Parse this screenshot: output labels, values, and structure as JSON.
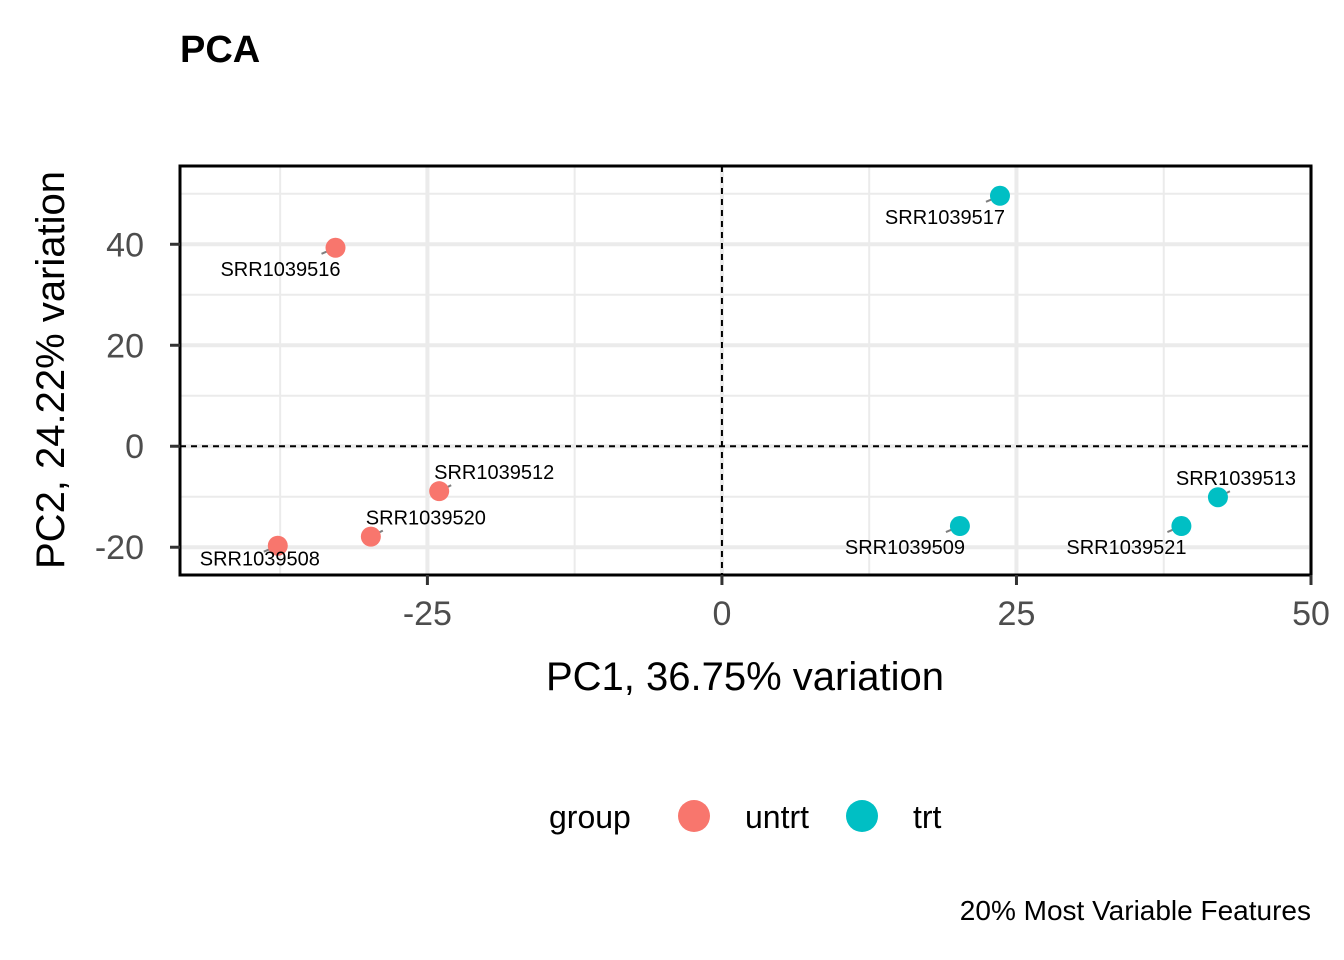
{
  "chart_data": {
    "type": "scatter",
    "title": "PCA",
    "xlabel": "PC1, 36.75% variation",
    "ylabel": "PC2, 24.22% variation",
    "caption": "20% Most Variable Features",
    "xlim": [
      -46,
      50
    ],
    "ylim": [
      -25.5,
      55.5
    ],
    "xticks": [
      -25,
      0,
      25,
      50
    ],
    "xtick_labels": [
      "-25",
      "0",
      "25",
      "50"
    ],
    "yticks": [
      -20,
      0,
      20,
      40
    ],
    "ytick_labels": [
      "-20",
      "0",
      "20",
      "40"
    ],
    "grid": true,
    "reference_lines": {
      "x": 0,
      "y": 0
    },
    "legend": {
      "title": "group",
      "position": "bottom",
      "entries": [
        {
          "name": "untrt",
          "color": "#F8766D"
        },
        {
          "name": "trt",
          "color": "#00BFC4"
        }
      ]
    },
    "points": [
      {
        "label": "SRR1039508",
        "group": "untrt",
        "x": -37.7,
        "y": -19.7
      },
      {
        "label": "SRR1039512",
        "group": "untrt",
        "x": -24,
        "y": -8.9
      },
      {
        "label": "SRR1039516",
        "group": "untrt",
        "x": -32.8,
        "y": 39.3
      },
      {
        "label": "SRR1039520",
        "group": "untrt",
        "x": -29.8,
        "y": -17.9
      },
      {
        "label": "SRR1039509",
        "group": "trt",
        "x": 20.2,
        "y": -15.8
      },
      {
        "label": "SRR1039513",
        "group": "trt",
        "x": 42.1,
        "y": -10.1
      },
      {
        "label": "SRR1039517",
        "group": "trt",
        "x": 23.6,
        "y": 49.6
      },
      {
        "label": "SRR1039521",
        "group": "trt",
        "x": 39,
        "y": -15.8
      }
    ]
  }
}
